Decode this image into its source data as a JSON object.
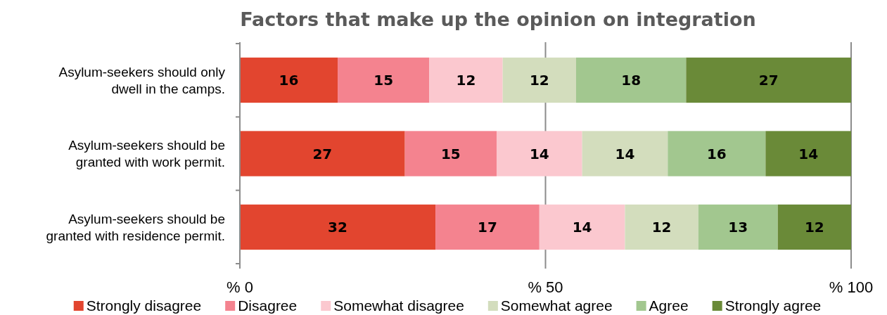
{
  "chart_data": {
    "type": "bar",
    "title": "Factors that make up the opinion on integration",
    "orientation": "horizontal",
    "stacked": true,
    "categories": [
      "Asylum-seekers should only dwell in the camps.",
      "Asylum-seekers should be granted with work permit.",
      "Asylum-seekers should be granted with residence permit."
    ],
    "series": [
      {
        "name": "Strongly disagree",
        "color": "#e2452f",
        "values": [
          16,
          27,
          32
        ]
      },
      {
        "name": "Disagree",
        "color": "#f4838f",
        "values": [
          15,
          15,
          17
        ]
      },
      {
        "name": "Somewhat disagree",
        "color": "#fbc8cf",
        "values": [
          12,
          14,
          14
        ]
      },
      {
        "name": "Somewhat agree",
        "color": "#d3ddbd",
        "values": [
          12,
          14,
          12
        ]
      },
      {
        "name": "Agree",
        "color": "#a2c78f",
        "values": [
          18,
          16,
          13
        ]
      },
      {
        "name": "Strongly agree",
        "color": "#6a8a38",
        "values": [
          27,
          14,
          12
        ]
      }
    ],
    "xlim": [
      0,
      100
    ],
    "xticks": [
      {
        "value": 0,
        "label": "% 0"
      },
      {
        "value": 50,
        "label": "% 50"
      },
      {
        "value": 100,
        "label": "% 100"
      }
    ],
    "grid": "x",
    "legend": "bottom",
    "data_labels": true
  }
}
